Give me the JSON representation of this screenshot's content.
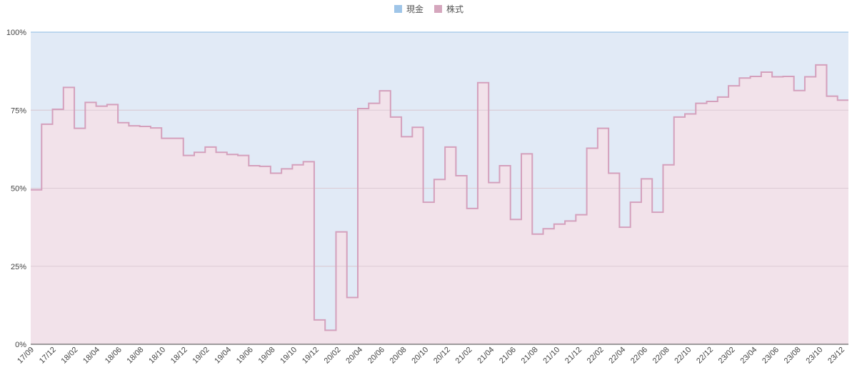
{
  "chart_data": {
    "type": "area",
    "title": "",
    "xlabel": "",
    "ylabel": "",
    "ylim": [
      0,
      100
    ],
    "legend_position": "top-center",
    "grid": true,
    "y_ticks": [
      "0%",
      "25%",
      "50%",
      "75%",
      "100%"
    ],
    "x_tick_labels": [
      "17/09",
      "17/12",
      "18/02",
      "18/04",
      "18/06",
      "18/08",
      "18/10",
      "18/12",
      "19/02",
      "19/04",
      "19/06",
      "19/08",
      "19/10",
      "19/12",
      "20/02",
      "20/04",
      "20/06",
      "20/08",
      "20/10",
      "20/12",
      "21/02",
      "21/04",
      "21/06",
      "21/08",
      "21/10",
      "21/12",
      "22/02",
      "22/04",
      "22/06",
      "22/08",
      "22/10",
      "22/12",
      "23/02",
      "23/04",
      "23/06",
      "23/08",
      "23/10",
      "23/12"
    ],
    "series": [
      {
        "name": "現金",
        "color": "#9fc5e8",
        "fill": "#e1eaf6",
        "stacked_top": 100
      },
      {
        "name": "株式",
        "color": "#d5a6bd",
        "stroke": "#d4a0bc",
        "fill": "#f2e2ea",
        "values": [
          49.5,
          70.5,
          75.3,
          82.3,
          69.2,
          77.5,
          76.3,
          76.8,
          71.0,
          70.0,
          69.8,
          69.3,
          66.0,
          66.0,
          60.5,
          61.5,
          63.2,
          61.5,
          60.8,
          60.5,
          57.2,
          57.0,
          54.8,
          56.2,
          57.5,
          58.5,
          7.8,
          4.5,
          36.0,
          15.0,
          75.5,
          77.2,
          81.2,
          72.8,
          66.5,
          69.5,
          45.5,
          52.8,
          63.2,
          54.0,
          43.5,
          83.8,
          51.8,
          57.2,
          40.0,
          61.0,
          35.3,
          37.0,
          38.5,
          39.5,
          41.5,
          62.8,
          69.2,
          54.8,
          37.5,
          45.5,
          53.0,
          42.3,
          57.5,
          72.8,
          73.8,
          77.2,
          77.8,
          79.2,
          82.8,
          85.3,
          85.8,
          87.2,
          85.7,
          85.8,
          81.3,
          85.7,
          89.5,
          79.5,
          78.2
        ]
      }
    ]
  }
}
